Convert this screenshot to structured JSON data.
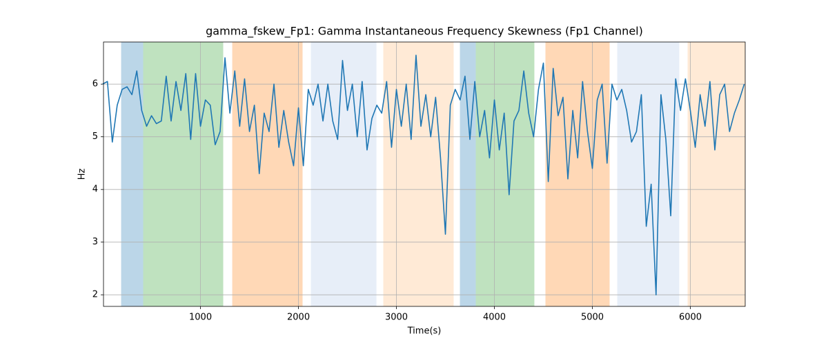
{
  "chart_data": {
    "type": "line",
    "title": "gamma_fskew_Fp1: Gamma Instantaneous Frequency Skewness (Fp1 Channel)",
    "xlabel": "Time(s)",
    "ylabel": "Hz",
    "xlim": [
      10,
      6560
    ],
    "ylim": [
      1.78,
      6.8
    ],
    "xticks": [
      1000,
      2000,
      3000,
      4000,
      5000,
      6000
    ],
    "yticks": [
      2,
      3,
      4,
      5,
      6
    ],
    "grid": true,
    "spans": [
      {
        "start": 190,
        "end": 415,
        "color": "#1f77b4"
      },
      {
        "start": 415,
        "end": 1232,
        "color": "#2ca02c"
      },
      {
        "start": 1324,
        "end": 2042,
        "color": "#ff7f0e"
      },
      {
        "start": 2127,
        "end": 2796,
        "color": "#aec7e8"
      },
      {
        "start": 2866,
        "end": 3584,
        "color": "#ffbb78"
      },
      {
        "start": 3648,
        "end": 3810,
        "color": "#1f77b4"
      },
      {
        "start": 3810,
        "end": 4408,
        "color": "#2ca02c"
      },
      {
        "start": 4521,
        "end": 5176,
        "color": "#ff7f0e"
      },
      {
        "start": 5254,
        "end": 5887,
        "color": "#aec7e8"
      },
      {
        "start": 5972,
        "end": 6560,
        "color": "#ffbb78"
      }
    ],
    "x": [
      0,
      50,
      100,
      150,
      200,
      250,
      300,
      350,
      400,
      450,
      500,
      550,
      600,
      650,
      700,
      750,
      800,
      850,
      900,
      950,
      1000,
      1050,
      1100,
      1150,
      1200,
      1250,
      1300,
      1350,
      1400,
      1450,
      1500,
      1550,
      1600,
      1650,
      1700,
      1750,
      1800,
      1850,
      1900,
      1950,
      2000,
      2050,
      2100,
      2150,
      2200,
      2250,
      2300,
      2350,
      2400,
      2450,
      2500,
      2550,
      2600,
      2650,
      2700,
      2750,
      2800,
      2850,
      2900,
      2950,
      3000,
      3050,
      3100,
      3150,
      3200,
      3250,
      3300,
      3350,
      3400,
      3450,
      3500,
      3550,
      3600,
      3650,
      3700,
      3750,
      3800,
      3850,
      3900,
      3950,
      4000,
      4050,
      4100,
      4150,
      4200,
      4250,
      4300,
      4350,
      4400,
      4450,
      4500,
      4550,
      4600,
      4650,
      4700,
      4750,
      4800,
      4850,
      4900,
      4950,
      5000,
      5050,
      5100,
      5150,
      5200,
      5250,
      5300,
      5350,
      5400,
      5450,
      5500,
      5550,
      5600,
      5650,
      5700,
      5750,
      5800,
      5850,
      5900,
      5950,
      6000,
      6050,
      6100,
      6150,
      6200,
      6250,
      6300,
      6350,
      6400,
      6450,
      6500,
      6550
    ],
    "series": [
      {
        "color": "#1f77b4",
        "values": [
          6.0,
          6.05,
          4.9,
          5.6,
          5.9,
          5.95,
          5.8,
          6.25,
          5.5,
          5.2,
          5.4,
          5.25,
          5.3,
          6.15,
          5.3,
          6.05,
          5.5,
          6.2,
          4.95,
          6.2,
          5.2,
          5.7,
          5.6,
          4.85,
          5.1,
          6.5,
          5.45,
          6.25,
          5.2,
          6.1,
          5.1,
          5.6,
          4.3,
          5.45,
          5.1,
          6.0,
          4.8,
          5.5,
          4.9,
          4.45,
          5.55,
          4.45,
          5.9,
          5.6,
          6.0,
          5.3,
          6.0,
          5.3,
          4.95,
          6.45,
          5.5,
          6.0,
          5.0,
          6.05,
          4.75,
          5.35,
          5.6,
          5.45,
          6.05,
          4.8,
          5.9,
          5.2,
          6.0,
          4.95,
          6.55,
          5.2,
          5.8,
          5.0,
          5.75,
          4.6,
          3.15,
          5.6,
          5.9,
          5.7,
          6.15,
          4.95,
          6.05,
          5.0,
          5.5,
          4.6,
          5.7,
          4.75,
          5.45,
          3.9,
          5.3,
          5.5,
          6.25,
          5.45,
          5.0,
          5.9,
          6.4,
          4.15,
          6.3,
          5.4,
          5.75,
          4.2,
          5.5,
          4.6,
          6.05,
          5.1,
          4.4,
          5.7,
          6.0,
          4.5,
          6.0,
          5.7,
          5.9,
          5.5,
          4.9,
          5.1,
          5.8,
          3.3,
          4.1,
          2.0,
          5.8,
          4.95,
          3.5,
          6.1,
          5.5,
          6.1,
          5.5,
          4.8,
          5.8,
          5.2,
          6.05,
          4.75,
          5.8,
          6.0,
          5.1,
          5.45,
          5.7,
          6.0
        ]
      }
    ]
  }
}
